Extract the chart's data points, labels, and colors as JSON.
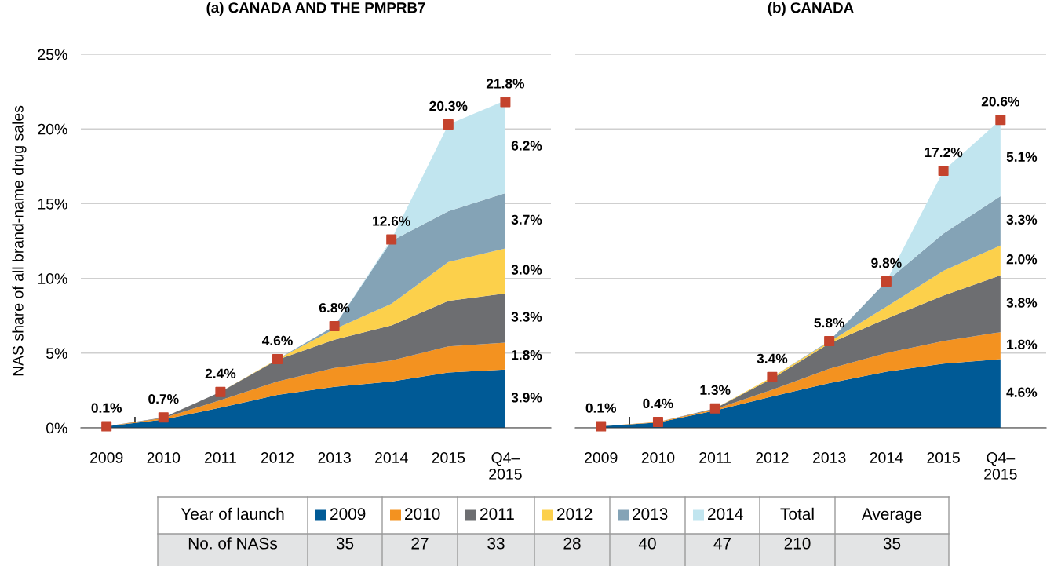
{
  "chart_data": [
    {
      "type": "area",
      "stacked": true,
      "title": "(a) CANADA AND THE PMPRB7",
      "ylabel": "NAS share of all brand-name drug sales",
      "categories": [
        "2009",
        "2010",
        "2011",
        "2012",
        "2013",
        "2014",
        "2015",
        "Q4–\n2015"
      ],
      "series": [
        {
          "name": "2009",
          "color": "#005a96",
          "values": [
            0.1,
            0.55,
            1.35,
            2.2,
            2.75,
            3.1,
            3.7,
            3.9
          ],
          "value_labels": [
            null,
            null,
            null,
            null,
            null,
            null,
            null,
            "3.9%"
          ]
        },
        {
          "name": "2010",
          "color": "#f39220",
          "values": [
            0,
            0.1,
            0.5,
            0.9,
            1.25,
            1.4,
            1.75,
            1.8
          ],
          "value_labels": [
            null,
            null,
            null,
            null,
            null,
            null,
            null,
            "1.8%"
          ]
        },
        {
          "name": "2011",
          "color": "#6d6e71",
          "values": [
            0,
            0.05,
            0.55,
            1.45,
            1.9,
            2.35,
            3.05,
            3.3
          ],
          "value_labels": [
            null,
            null,
            null,
            null,
            null,
            null,
            null,
            "3.3%"
          ]
        },
        {
          "name": "2012",
          "color": "#fcd04b",
          "values": [
            0,
            0,
            0,
            0.05,
            0.7,
            1.45,
            2.6,
            3.0
          ],
          "value_labels": [
            null,
            null,
            null,
            null,
            null,
            null,
            null,
            "3.0%"
          ]
        },
        {
          "name": "2013",
          "color": "#84a3b6",
          "values": [
            0,
            0,
            0,
            0,
            0.2,
            4.2,
            3.4,
            3.7
          ],
          "value_labels": [
            null,
            null,
            null,
            null,
            null,
            null,
            null,
            "3.7%"
          ]
        },
        {
          "name": "2014",
          "color": "#c1e5ef",
          "values": [
            0,
            0,
            0,
            0,
            0,
            0.1,
            5.8,
            6.2
          ],
          "value_labels": [
            null,
            null,
            null,
            null,
            null,
            null,
            null,
            "6.2%"
          ]
        },
        {
          "type": "scatter",
          "marker": "square",
          "color": "#c4432d",
          "values": [
            0.1,
            0.7,
            2.4,
            4.6,
            6.8,
            12.6,
            20.3,
            21.8
          ],
          "value_labels": [
            "0.1%",
            "0.7%",
            "2.4%",
            "4.6%",
            "6.8%",
            "12.6%",
            "20.3%",
            "21.8%"
          ]
        }
      ],
      "ylim": [
        0,
        25
      ],
      "yticks": [
        {
          "value": 0,
          "label": "0%"
        },
        {
          "value": 5,
          "label": "5%"
        },
        {
          "value": 10,
          "label": "10%"
        },
        {
          "value": 15,
          "label": "15%"
        },
        {
          "value": 20,
          "label": "20%"
        },
        {
          "value": 25,
          "label": "25%"
        }
      ],
      "grid": "y",
      "legend": "bottom",
      "legend_title": "Year of launch",
      "annotations": [
        "Total",
        "Average",
        "No. of NASs",
        "35",
        "27",
        "33",
        "28",
        "40",
        "47",
        "210",
        "35"
      ]
    },
    {
      "type": "area",
      "stacked": true,
      "title": "(b) CANADA",
      "categories": [
        "2009",
        "2010",
        "2011",
        "2012",
        "2013",
        "2014",
        "2015",
        "Q4–\n2015"
      ],
      "series": [
        {
          "color": "#005a96",
          "values": [
            0.1,
            0.35,
            1.15,
            2.1,
            3.0,
            3.75,
            4.3,
            4.6
          ],
          "value_labels": [
            null,
            null,
            null,
            null,
            null,
            null,
            null,
            "4.6%"
          ]
        },
        {
          "color": "#f39220",
          "values": [
            0,
            0.05,
            0.1,
            0.45,
            0.95,
            1.25,
            1.5,
            1.8
          ],
          "value_labels": [
            null,
            null,
            null,
            null,
            null,
            null,
            null,
            "1.8%"
          ]
        },
        {
          "color": "#6d6e71",
          "values": [
            0,
            0,
            0.05,
            0.75,
            1.7,
            2.3,
            3.05,
            3.8
          ],
          "value_labels": [
            null,
            null,
            null,
            null,
            null,
            null,
            null,
            "3.8%"
          ]
        },
        {
          "color": "#fcd04b",
          "values": [
            0,
            0,
            0,
            0.1,
            0.1,
            0.8,
            1.65,
            2.0
          ],
          "value_labels": [
            null,
            null,
            null,
            null,
            null,
            null,
            null,
            "2.0%"
          ]
        },
        {
          "color": "#84a3b6",
          "values": [
            0,
            0,
            0,
            0,
            0.05,
            1.7,
            2.5,
            3.3
          ],
          "value_labels": [
            null,
            null,
            null,
            null,
            null,
            null,
            null,
            "3.3%"
          ]
        },
        {
          "color": "#c1e5ef",
          "values": [
            0,
            0,
            0,
            0,
            0,
            0,
            4.2,
            5.1
          ],
          "value_labels": [
            null,
            null,
            null,
            null,
            null,
            null,
            null,
            "5.1%"
          ]
        },
        {
          "type": "scatter",
          "marker": "square",
          "color": "#c4432d",
          "values": [
            0.1,
            0.4,
            1.3,
            3.4,
            5.8,
            9.8,
            17.2,
            20.6
          ],
          "value_labels": [
            "0.1%",
            "0.4%",
            "1.3%",
            "3.4%",
            "5.8%",
            "9.8%",
            "17.2%",
            "20.6%"
          ]
        }
      ],
      "ylim": [
        0,
        25
      ],
      "yticks": [
        {
          "value": 0,
          "label": null
        },
        {
          "value": 5,
          "label": null
        },
        {
          "value": 10,
          "label": null
        },
        {
          "value": 15,
          "label": null
        },
        {
          "value": 20,
          "label": null
        },
        {
          "value": 25,
          "label": null
        }
      ],
      "grid": "y",
      "tick_labels": "x"
    }
  ]
}
